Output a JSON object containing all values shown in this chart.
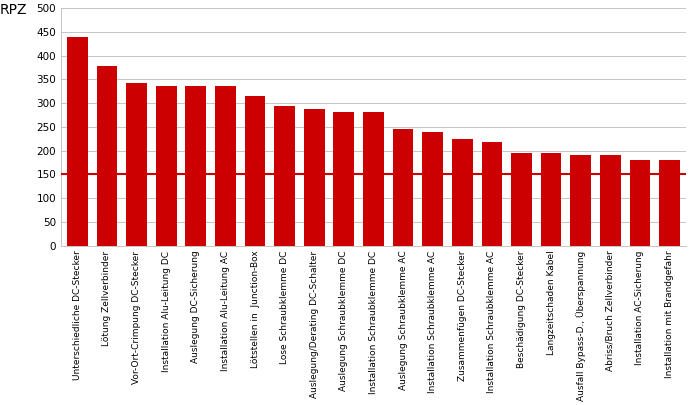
{
  "categories": [
    "Unterschiedliche DC-Stecker",
    "Lötung Zellverbinder",
    "Vor-Ort-Crimpung DC-Stecker",
    "Installation Alu-Leitung DC",
    "Auslegung DC-Sicherung",
    "Installation Alu-Leitung AC",
    "Lötstellen in  Junction-Box",
    "Lose Schraubklemme DC",
    "Auslegung/Derating DC-Schalter",
    "Auslegung Schraubklemme DC",
    "Installation Schraubklemme DC",
    "Auslegung Schraubklemme AC",
    "Installation Schraubklemme AC",
    "Zusammenfügen DC-Stecker",
    "Installation Schraubklemme AC",
    "Beschädigung DC-Stecker",
    "Langzeitschaden Kabel",
    "Ausfall Bypass-D., Überspannung",
    "Abriss/Bruch Zellverbinder",
    "Installation AC-Sicherung",
    "Installation mit Brandgefahr"
  ],
  "values": [
    440,
    378,
    342,
    336,
    336,
    336,
    315,
    294,
    287,
    281,
    281,
    245,
    240,
    225,
    218,
    196,
    195,
    192,
    192,
    180,
    181
  ],
  "bar_color": "#cc0000",
  "hline_y": 150,
  "hline_color": "#cc0000",
  "ylabel": "RPZ",
  "ylim": [
    0,
    500
  ],
  "yticks": [
    0,
    50,
    100,
    150,
    200,
    250,
    300,
    350,
    400,
    450,
    500
  ],
  "grid_color": "#bbbbbb",
  "background_color": "#ffffff",
  "tick_label_fontsize": 6.5,
  "ylabel_fontsize": 10,
  "ytick_fontsize": 7.5,
  "bar_width": 0.7,
  "hline_linewidth": 1.5
}
